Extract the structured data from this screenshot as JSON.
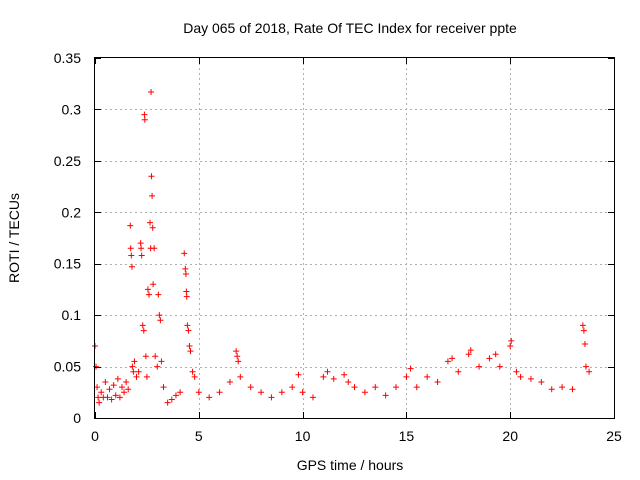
{
  "chart_data": {
    "type": "scatter",
    "title": "Day 065 of 2018, Rate Of TEC Index for receiver ppte",
    "xlabel": "GPS time / hours",
    "ylabel": "ROTI / TECUs",
    "xlim": [
      0,
      25
    ],
    "ylim": [
      0,
      0.35
    ],
    "x_ticks": [
      0,
      5,
      10,
      15,
      20,
      25
    ],
    "x_tick_labels": [
      "0",
      "5",
      "10",
      "15",
      "20",
      "25"
    ],
    "y_ticks": [
      0,
      0.05,
      0.1,
      0.15,
      0.2,
      0.25,
      0.3,
      0.35
    ],
    "y_tick_labels": [
      "0",
      "0.05",
      "0.1",
      "0.15",
      "0.2",
      "0.25",
      "0.3",
      "0.35"
    ],
    "grid": true,
    "marker": "+",
    "series": [
      {
        "name": "ROTI",
        "color": "#ff0000",
        "points": [
          [
            0.0,
            0.07
          ],
          [
            0.05,
            0.05
          ],
          [
            0.1,
            0.03
          ],
          [
            0.15,
            0.02
          ],
          [
            0.2,
            0.015
          ],
          [
            0.3,
            0.025
          ],
          [
            0.4,
            0.02
          ],
          [
            0.5,
            0.035
          ],
          [
            0.6,
            0.02
          ],
          [
            0.7,
            0.028
          ],
          [
            0.8,
            0.018
          ],
          [
            0.9,
            0.032
          ],
          [
            1.0,
            0.022
          ],
          [
            1.1,
            0.038
          ],
          [
            1.2,
            0.02
          ],
          [
            1.3,
            0.03
          ],
          [
            1.4,
            0.025
          ],
          [
            1.5,
            0.035
          ],
          [
            1.6,
            0.028
          ],
          [
            1.7,
            0.187
          ],
          [
            1.72,
            0.165
          ],
          [
            1.75,
            0.158
          ],
          [
            1.78,
            0.147
          ],
          [
            1.8,
            0.05
          ],
          [
            1.85,
            0.045
          ],
          [
            1.9,
            0.055
          ],
          [
            2.0,
            0.04
          ],
          [
            2.1,
            0.045
          ],
          [
            2.2,
            0.17
          ],
          [
            2.22,
            0.165
          ],
          [
            2.25,
            0.158
          ],
          [
            2.3,
            0.09
          ],
          [
            2.35,
            0.085
          ],
          [
            2.38,
            0.295
          ],
          [
            2.4,
            0.29
          ],
          [
            2.45,
            0.06
          ],
          [
            2.5,
            0.04
          ],
          [
            2.55,
            0.125
          ],
          [
            2.6,
            0.12
          ],
          [
            2.65,
            0.19
          ],
          [
            2.68,
            0.165
          ],
          [
            2.7,
            0.317
          ],
          [
            2.72,
            0.235
          ],
          [
            2.75,
            0.216
          ],
          [
            2.78,
            0.185
          ],
          [
            2.8,
            0.13
          ],
          [
            2.85,
            0.165
          ],
          [
            2.9,
            0.06
          ],
          [
            3.0,
            0.05
          ],
          [
            3.05,
            0.12
          ],
          [
            3.1,
            0.1
          ],
          [
            3.15,
            0.095
          ],
          [
            3.2,
            0.055
          ],
          [
            3.3,
            0.03
          ],
          [
            3.5,
            0.015
          ],
          [
            3.7,
            0.018
          ],
          [
            3.9,
            0.022
          ],
          [
            4.1,
            0.025
          ],
          [
            4.3,
            0.16
          ],
          [
            4.35,
            0.145
          ],
          [
            4.38,
            0.14
          ],
          [
            4.4,
            0.123
          ],
          [
            4.42,
            0.118
          ],
          [
            4.45,
            0.09
          ],
          [
            4.5,
            0.085
          ],
          [
            4.55,
            0.07
          ],
          [
            4.6,
            0.065
          ],
          [
            4.7,
            0.045
          ],
          [
            4.8,
            0.04
          ],
          [
            5.0,
            0.025
          ],
          [
            5.5,
            0.02
          ],
          [
            6.0,
            0.025
          ],
          [
            6.5,
            0.035
          ],
          [
            6.8,
            0.065
          ],
          [
            6.85,
            0.06
          ],
          [
            6.9,
            0.055
          ],
          [
            7.0,
            0.04
          ],
          [
            7.5,
            0.03
          ],
          [
            8.0,
            0.025
          ],
          [
            8.5,
            0.02
          ],
          [
            9.0,
            0.025
          ],
          [
            9.5,
            0.03
          ],
          [
            9.8,
            0.042
          ],
          [
            10.0,
            0.025
          ],
          [
            10.5,
            0.02
          ],
          [
            11.0,
            0.04
          ],
          [
            11.2,
            0.045
          ],
          [
            11.5,
            0.038
          ],
          [
            12.0,
            0.042
          ],
          [
            12.2,
            0.035
          ],
          [
            12.5,
            0.03
          ],
          [
            13.0,
            0.025
          ],
          [
            13.5,
            0.03
          ],
          [
            14.0,
            0.022
          ],
          [
            14.5,
            0.03
          ],
          [
            15.0,
            0.04
          ],
          [
            15.2,
            0.048
          ],
          [
            15.5,
            0.03
          ],
          [
            16.0,
            0.04
          ],
          [
            16.5,
            0.035
          ],
          [
            17.0,
            0.055
          ],
          [
            17.2,
            0.058
          ],
          [
            17.5,
            0.045
          ],
          [
            18.0,
            0.062
          ],
          [
            18.1,
            0.066
          ],
          [
            18.5,
            0.05
          ],
          [
            19.0,
            0.058
          ],
          [
            19.3,
            0.062
          ],
          [
            19.5,
            0.05
          ],
          [
            20.0,
            0.07
          ],
          [
            20.05,
            0.075
          ],
          [
            20.3,
            0.045
          ],
          [
            20.5,
            0.04
          ],
          [
            21.0,
            0.038
          ],
          [
            21.5,
            0.035
          ],
          [
            22.0,
            0.028
          ],
          [
            22.5,
            0.03
          ],
          [
            23.0,
            0.028
          ],
          [
            23.5,
            0.09
          ],
          [
            23.55,
            0.085
          ],
          [
            23.6,
            0.072
          ],
          [
            23.65,
            0.05
          ],
          [
            23.8,
            0.045
          ]
        ]
      }
    ]
  }
}
